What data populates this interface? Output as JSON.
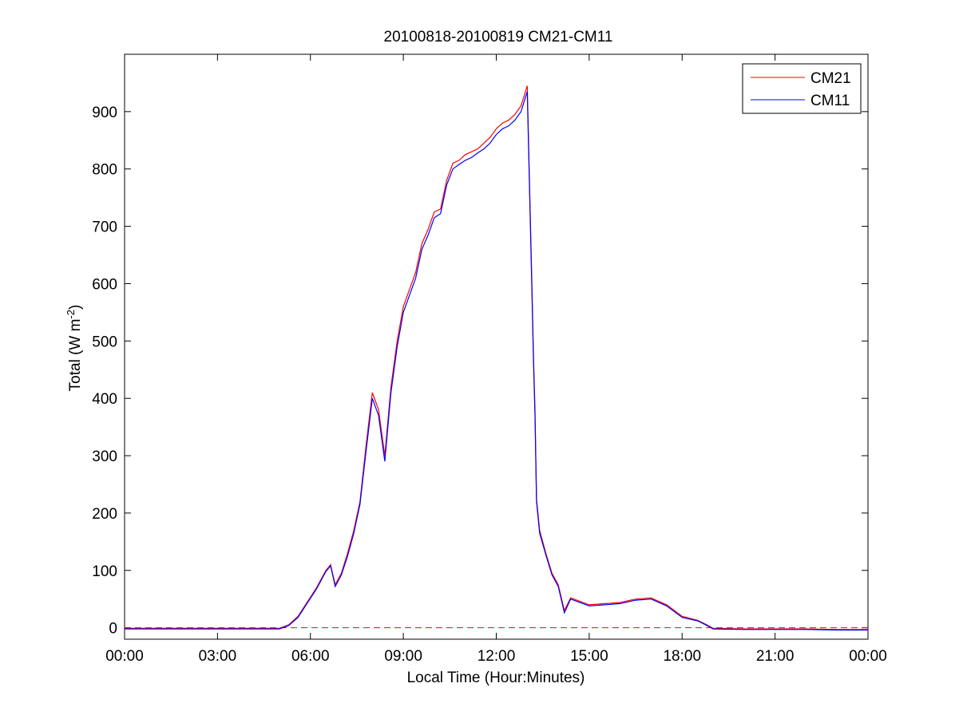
{
  "chart_data": {
    "type": "line",
    "title": "20100818-20100819 CM21-CM11",
    "xlabel": "Local Time (Hour:Minutes)",
    "ylabel": "Total (W m",
    "ylabel_sup": "-2",
    "ylabel_close": ")",
    "xlim": [
      0,
      24
    ],
    "ylim": [
      -20,
      1000
    ],
    "x_ticks": [
      0,
      3,
      6,
      9,
      12,
      15,
      18,
      21,
      24
    ],
    "x_tick_labels": [
      "00:00",
      "03:00",
      "06:00",
      "09:00",
      "12:00",
      "15:00",
      "18:00",
      "21:00",
      "00:00"
    ],
    "y_ticks": [
      0,
      100,
      200,
      300,
      400,
      500,
      600,
      700,
      800,
      900
    ],
    "y_tick_labels": [
      "0",
      "100",
      "200",
      "300",
      "400",
      "500",
      "600",
      "700",
      "800",
      "900"
    ],
    "legend_position": "top-right",
    "grid": false,
    "reference_line": {
      "y": 0,
      "style": "dashed",
      "color": "#b22222"
    },
    "x": [
      0,
      1,
      2,
      3,
      4,
      5,
      5.3,
      5.6,
      5.9,
      6.2,
      6.5,
      6.65,
      6.8,
      7.0,
      7.2,
      7.4,
      7.6,
      7.8,
      8.0,
      8.2,
      8.4,
      8.6,
      8.8,
      9.0,
      9.2,
      9.4,
      9.6,
      9.8,
      10.0,
      10.2,
      10.4,
      10.6,
      10.8,
      11.0,
      11.2,
      11.4,
      11.6,
      11.8,
      12.0,
      12.2,
      12.4,
      12.6,
      12.8,
      13.0,
      13.15,
      13.2,
      13.25,
      13.3,
      13.4,
      13.6,
      13.8,
      14.0,
      14.2,
      14.4,
      14.6,
      15.0,
      15.5,
      16.0,
      16.5,
      17.0,
      17.5,
      18.0,
      18.5,
      18.8,
      19.0,
      20.0,
      21.0,
      22.0,
      23.0,
      24.0
    ],
    "series": [
      {
        "name": "CM21",
        "color": "#ff0000",
        "values": [
          -1,
          -1,
          -1,
          -1,
          -1,
          -1,
          5,
          20,
          45,
          70,
          100,
          110,
          75,
          95,
          130,
          170,
          220,
          320,
          410,
          380,
          300,
          420,
          500,
          560,
          590,
          620,
          670,
          695,
          725,
          730,
          780,
          810,
          815,
          825,
          830,
          835,
          845,
          855,
          870,
          880,
          885,
          895,
          910,
          945,
          600,
          480,
          380,
          225,
          170,
          130,
          95,
          75,
          30,
          52,
          48,
          40,
          42,
          44,
          50,
          52,
          40,
          20,
          13,
          5,
          -1,
          -2,
          -2,
          -2,
          -3,
          -3
        ]
      },
      {
        "name": "CM11",
        "color": "#0000ff",
        "values": [
          -2,
          -2,
          -2,
          -2,
          -2,
          -2,
          4,
          18,
          43,
          68,
          98,
          108,
          72,
          92,
          125,
          165,
          215,
          310,
          400,
          370,
          290,
          410,
          490,
          550,
          580,
          610,
          660,
          685,
          715,
          722,
          772,
          800,
          808,
          815,
          820,
          828,
          835,
          845,
          860,
          870,
          875,
          885,
          900,
          935,
          590,
          470,
          370,
          220,
          165,
          127,
          92,
          72,
          26,
          50,
          46,
          38,
          40,
          42,
          48,
          50,
          38,
          18,
          12,
          4,
          -2,
          -3,
          -3,
          -3,
          -4,
          -4
        ]
      }
    ]
  }
}
